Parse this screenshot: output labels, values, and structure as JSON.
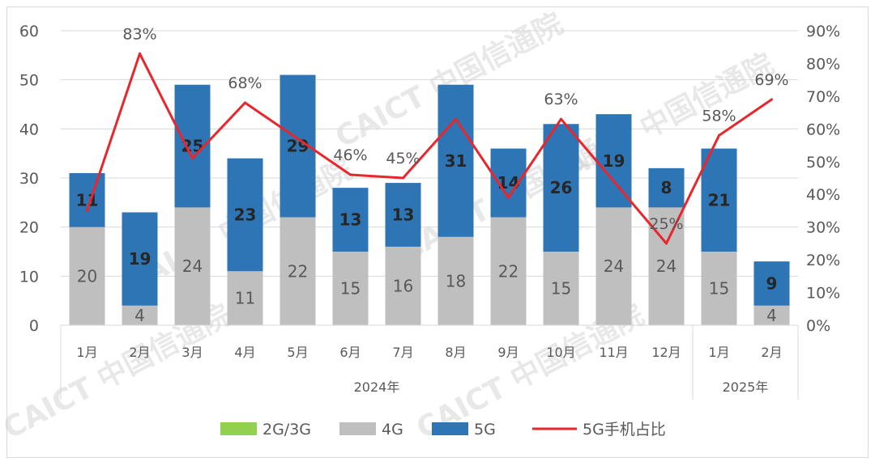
{
  "chart_data": {
    "type": "bar",
    "stacked": true,
    "categories": [
      "1月",
      "2月",
      "3月",
      "4月",
      "5月",
      "6月",
      "7月",
      "8月",
      "9月",
      "10月",
      "11月",
      "12月",
      "1月",
      "2月"
    ],
    "groups": [
      {
        "label": "2024年",
        "count": 12
      },
      {
        "label": "2025年",
        "count": 2
      }
    ],
    "series": [
      {
        "name": "2G/3G",
        "color": "#92d050",
        "values": [
          0,
          0,
          0,
          0,
          0,
          0,
          0,
          0,
          0,
          0,
          0,
          0,
          0,
          0
        ]
      },
      {
        "name": "4G",
        "color": "#bfbfbf",
        "values": [
          20,
          4,
          24,
          11,
          22,
          15,
          16,
          18,
          22,
          15,
          24,
          24,
          15,
          4
        ]
      },
      {
        "name": "5G",
        "color": "#2e75b6",
        "values": [
          11,
          19,
          25,
          23,
          29,
          13,
          13,
          31,
          14,
          26,
          19,
          8,
          21,
          9
        ]
      }
    ],
    "line": {
      "name": "5G手机占比",
      "color": "#e8262b",
      "axis": "right",
      "values": [
        35,
        83,
        51,
        68,
        57,
        46,
        45,
        63,
        39,
        63,
        44,
        25,
        58,
        69
      ],
      "labels": [
        "",
        "83%",
        "",
        "68%",
        "",
        "46%",
        "45%",
        "",
        "",
        "63%",
        "",
        "25%",
        "58%",
        "69%"
      ]
    },
    "y_left": {
      "min": 0,
      "max": 60,
      "ticks": [
        "0",
        "10",
        "20",
        "30",
        "40",
        "50",
        "60"
      ]
    },
    "y_right": {
      "min": 0,
      "max": 90,
      "ticks": [
        "0%",
        "10%",
        "20%",
        "30%",
        "40%",
        "50%",
        "60%",
        "70%",
        "80%",
        "90%"
      ]
    },
    "grid": true,
    "legend_position": "bottom",
    "watermark": "CAICT 中国信通院"
  }
}
